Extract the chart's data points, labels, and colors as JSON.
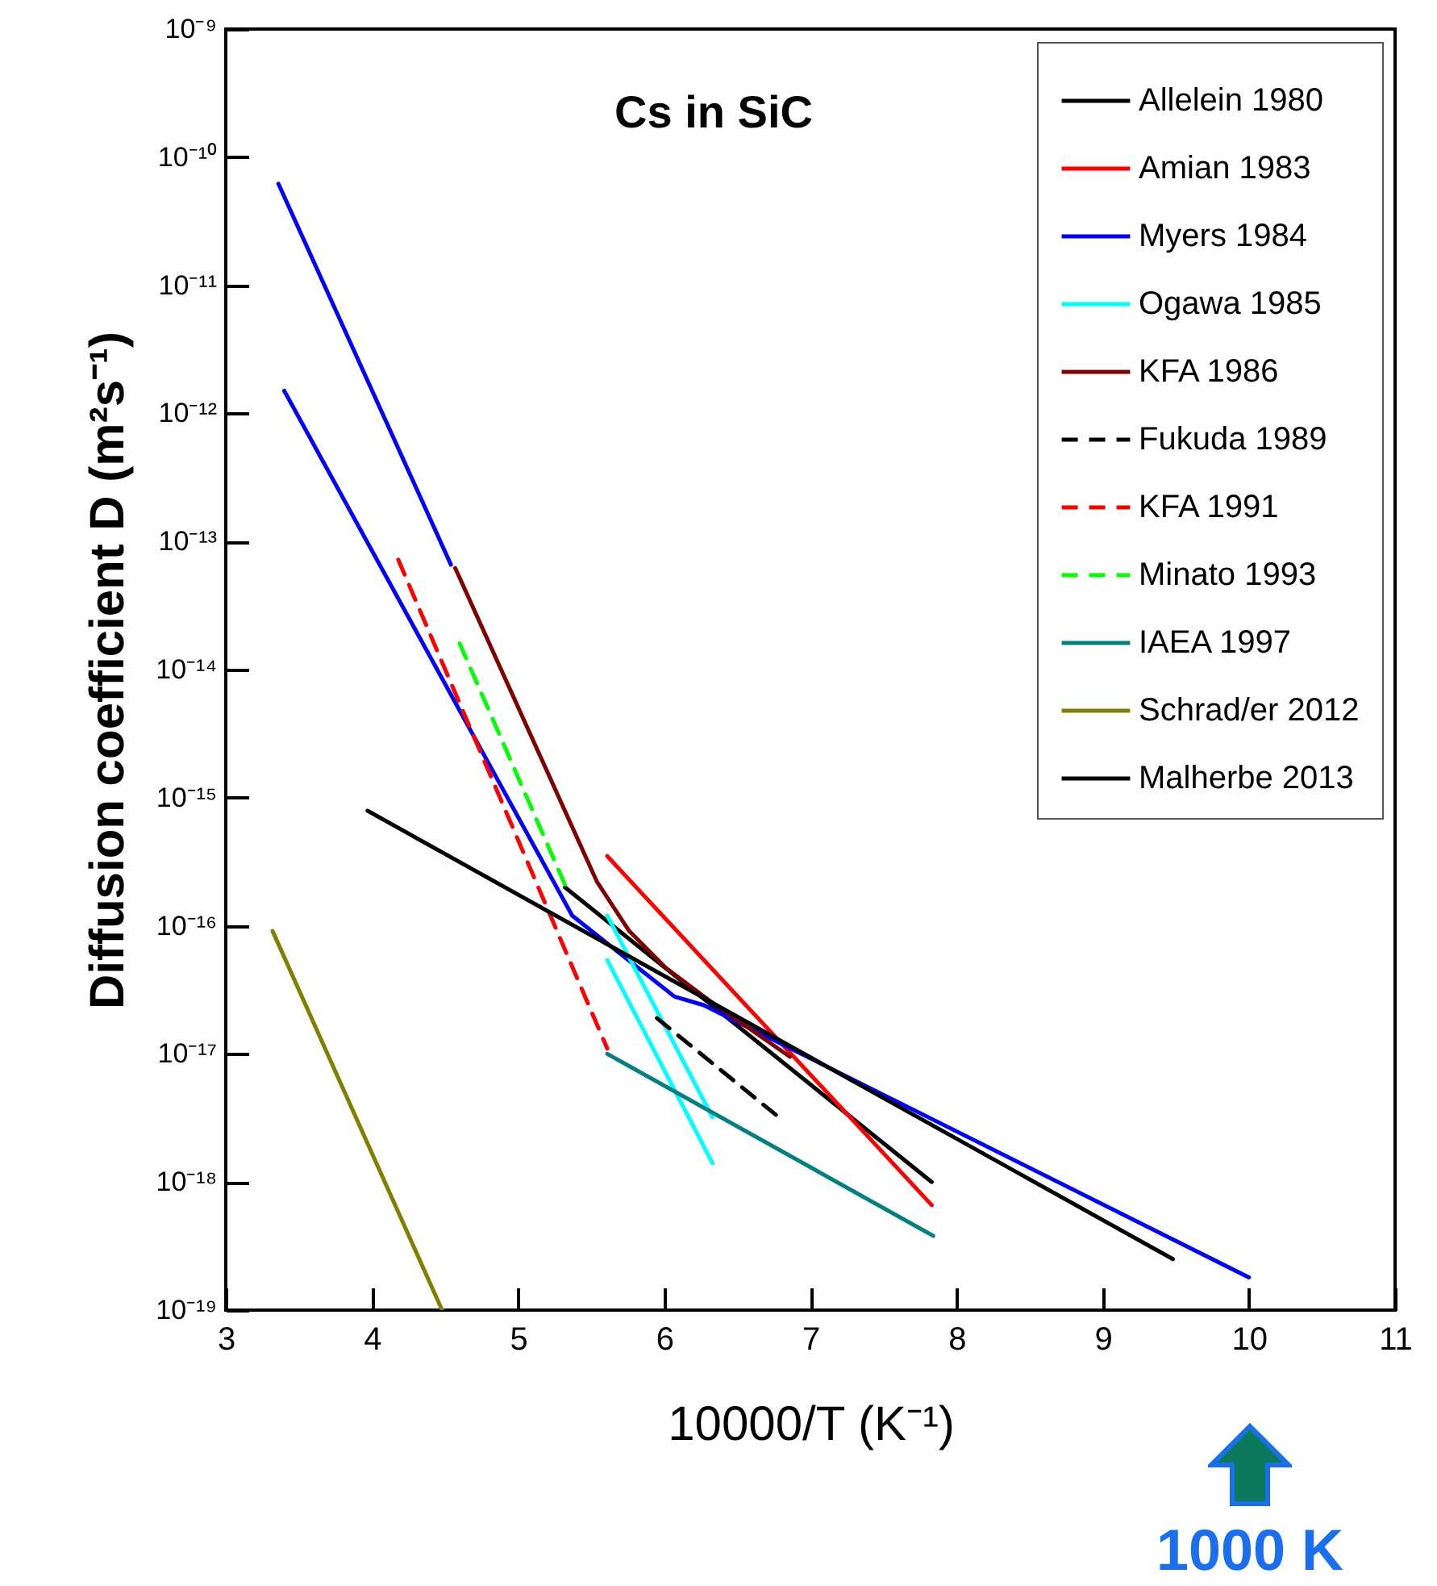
{
  "chart_data": {
    "type": "line",
    "title": "Cs in SiC",
    "xlabel": "10000/T  (K⁻¹)",
    "ylabel": "Diffusion coefficient D (m²s⁻¹)",
    "log": "y",
    "xlim": [
      3,
      11
    ],
    "xticks": [
      3,
      4,
      5,
      6,
      7,
      8,
      9,
      10,
      11
    ],
    "ylim": [
      1e-19,
      1e-09
    ],
    "yticks": [
      {
        "value": 1e-19,
        "label": "10⁻¹⁹"
      },
      {
        "value": 1e-18,
        "label": "10⁻¹⁸"
      },
      {
        "value": 1e-17,
        "label": "10⁻¹⁷"
      },
      {
        "value": 1e-16,
        "label": "10⁻¹⁶"
      },
      {
        "value": 1e-15,
        "label": "10⁻¹⁵"
      },
      {
        "value": 1e-14,
        "label": "10⁻¹⁴"
      },
      {
        "value": 1e-13,
        "label": "10⁻¹³"
      },
      {
        "value": 1e-12,
        "label": "10⁻¹²"
      },
      {
        "value": 1e-11,
        "label": "10⁻¹¹"
      },
      {
        "value": 1e-10,
        "label": "10⁻¹⁰"
      },
      {
        "value": 1e-09,
        "label": "10⁻⁹"
      }
    ],
    "grid": false,
    "legend": "top right",
    "marker": "none",
    "annotations": [
      "1000 K"
    ],
    "series": [
      {
        "name": "Allelein  1980",
        "color": "#000000",
        "line_style": "solid",
        "x": [
          5.32,
          7.83
        ],
        "values": [
          2e-16,
          1e-18
        ]
      },
      {
        "name": "Amian 1983",
        "color": "#ff0000",
        "line_style": "solid",
        "x": [
          5.61,
          7.83
        ],
        "values": [
          3.5e-16,
          6.6e-19
        ]
      },
      {
        "name": "Myers 1984",
        "color": "#0000ff",
        "line_style": "solid",
        "x": [
          3.4,
          5.37,
          6.07,
          6.27,
          10.0
        ],
        "values": [
          1.5e-12,
          1.2e-16,
          2.8e-17,
          2.4e-17,
          1.8e-19
        ]
      },
      {
        "color": "#0000ff",
        "line_style": "solid",
        "x": [
          3.36,
          4.54
        ],
        "values": [
          6.2e-11,
          6.6e-14
        ]
      },
      {
        "name": "Ogawa 1985",
        "color": "#00ffff",
        "line_style": "solid",
        "x": [
          5.61,
          6.33
        ],
        "values": [
          1.2e-16,
          3.2e-18
        ]
      },
      {
        "color": "#00ffff",
        "line_style": "solid",
        "x": [
          5.61,
          6.33
        ],
        "values": [
          5.4e-17,
          1.4e-18
        ]
      },
      {
        "name": "KFA 1986",
        "color": "#800000",
        "line_style": "solid",
        "x": [
          4.57,
          5.54,
          5.76,
          6.01,
          6.31,
          6.86
        ],
        "values": [
          6.2e-14,
          2.2e-16,
          9.1e-17,
          4.7e-17,
          2.6e-17,
          9.5e-18
        ]
      },
      {
        "name": "Fukuda 1989",
        "color": "#000000",
        "line_style": "dashed",
        "x": [
          5.95,
          6.77
        ],
        "values": [
          1.9e-17,
          3.3e-18
        ]
      },
      {
        "name": "KFA 1991",
        "color": "#ff0000",
        "line_style": "dashed",
        "x": [
          4.18,
          5.61
        ],
        "values": [
          7.2e-14,
          1.1e-17
        ]
      },
      {
        "name": "Minato 1993",
        "color": "#00ff00",
        "line_style": "dashed",
        "x": [
          4.6,
          5.32
        ],
        "values": [
          1.6e-14,
          2.1e-16
        ]
      },
      {
        "name": "IAEA 1997",
        "color": "#008080",
        "line_style": "solid",
        "x": [
          5.61,
          7.84
        ],
        "values": [
          1e-17,
          3.8e-19
        ]
      },
      {
        "name": "Schrad/er 2012",
        "color": "#808000",
        "line_style": "solid",
        "x": [
          3.32,
          4.48
        ],
        "values": [
          9.1e-17,
          1e-19
        ]
      },
      {
        "name": "Malherbe 2013",
        "color": "#000000",
        "line_style": "solid",
        "x": [
          3.97,
          9.48
        ],
        "values": [
          7.9e-16,
          2.5e-19
        ]
      }
    ]
  }
}
